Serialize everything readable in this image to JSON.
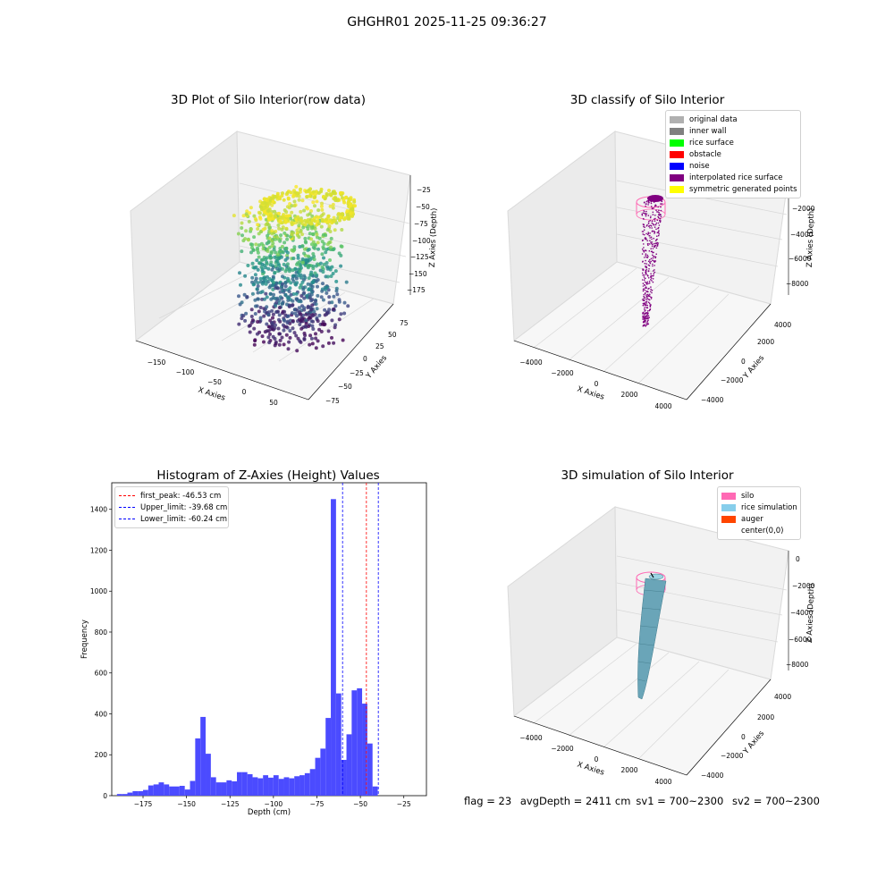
{
  "suptitle": "GHGHR01 2025-11-25 09:36:27",
  "plots": {
    "raw": {
      "title": "3D Plot of Silo Interior(row data)",
      "xlabel": "X Axies",
      "ylabel": "Y Axies",
      "zlabel": "Z Axies (Depth)",
      "xticks": [
        "−150",
        "−100",
        "−50",
        "0",
        "50"
      ],
      "yticks": [
        "−75",
        "−50",
        "−25",
        "0",
        "25",
        "50",
        "75"
      ],
      "zticks": [
        "−25",
        "−50",
        "−75",
        "−100",
        "−125",
        "−150",
        "−175"
      ]
    },
    "classify": {
      "title": "3D classify of Silo Interior",
      "xlabel": "X Axies",
      "ylabel": "Y Axies",
      "zlabel": "Z Axies (Depth)",
      "xticks": [
        "−4000",
        "−2000",
        "0",
        "2000",
        "4000"
      ],
      "yticks": [
        "−4000",
        "−2000",
        "0",
        "2000",
        "4000"
      ],
      "zticks": [
        "0",
        "−2000",
        "−4000",
        "−6000",
        "−8000"
      ],
      "legend": [
        {
          "label": "original data",
          "color": "#b0b0b0"
        },
        {
          "label": "inner wall",
          "color": "#808080"
        },
        {
          "label": "rice surface",
          "color": "#00ff00"
        },
        {
          "label": "obstacle",
          "color": "#ff0000"
        },
        {
          "label": "noise",
          "color": "#0000ff"
        },
        {
          "label": "interpolated rice surface",
          "color": "#800080"
        },
        {
          "label": "symmetric generated points",
          "color": "#ffff00"
        }
      ]
    },
    "histogram": {
      "title": "Histogram of Z-Axies (Height) Values",
      "xlabel": "Depth (cm)",
      "ylabel": "Frequency",
      "legend": [
        {
          "label": "first_peak: -46.53 cm",
          "color": "#ff0000"
        },
        {
          "label": "Upper_limit: -39.68 cm",
          "color": "#0000ff"
        },
        {
          "label": "Lower_limit: -60.24 cm",
          "color": "#0000ff"
        }
      ]
    },
    "simulation": {
      "title": "3D simulation of Silo Interior",
      "xlabel": "X Axies",
      "ylabel": "Y Axies",
      "zlabel": "Z Axies (Depth)",
      "xticks": [
        "−4000",
        "−2000",
        "0",
        "2000",
        "4000"
      ],
      "yticks": [
        "−4000",
        "−2000",
        "0",
        "2000",
        "4000"
      ],
      "zticks": [
        "0",
        "−2000",
        "−4000",
        "−6000",
        "−8000"
      ],
      "legend": [
        {
          "label": "silo",
          "color": "#ff69b4"
        },
        {
          "label": "rice simulation",
          "color": "#87ceeb"
        },
        {
          "label": "auger",
          "color": "#ff4500"
        },
        {
          "label": "center(0,0)",
          "color": "#ffffff"
        }
      ]
    }
  },
  "footer": {
    "flag": "flag = 23",
    "avg": "avgDepth = 2411 cm",
    "sv1": "sv1 = 700~2300",
    "sv2": "sv2 = 700~2300"
  },
  "chart_data": {
    "type": "bar",
    "title": "Histogram of Z-Axies (Height) Values",
    "xlabel": "Depth (cm)",
    "ylabel": "Frequency",
    "xlim": [
      -193,
      -12
    ],
    "ylim": [
      0,
      1530
    ],
    "xticks": [
      -175,
      -150,
      -125,
      -100,
      -75,
      -50,
      -25
    ],
    "yticks": [
      0,
      200,
      400,
      600,
      800,
      1000,
      1200,
      1400
    ],
    "bar_color": "#4b4bff",
    "bins": [
      {
        "x0": -190,
        "x1": -187,
        "y": 8
      },
      {
        "x0": -187,
        "x1": -184,
        "y": 8
      },
      {
        "x0": -184,
        "x1": -181,
        "y": 15
      },
      {
        "x0": -181,
        "x1": -178,
        "y": 22
      },
      {
        "x0": -178,
        "x1": -175,
        "y": 22
      },
      {
        "x0": -175,
        "x1": -172,
        "y": 28
      },
      {
        "x0": -172,
        "x1": -169,
        "y": 50
      },
      {
        "x0": -169,
        "x1": -166,
        "y": 55
      },
      {
        "x0": -166,
        "x1": -163,
        "y": 65
      },
      {
        "x0": -163,
        "x1": -160,
        "y": 55
      },
      {
        "x0": -160,
        "x1": -157,
        "y": 45
      },
      {
        "x0": -157,
        "x1": -154,
        "y": 45
      },
      {
        "x0": -154,
        "x1": -151,
        "y": 48
      },
      {
        "x0": -151,
        "x1": -148,
        "y": 30
      },
      {
        "x0": -148,
        "x1": -145,
        "y": 72
      },
      {
        "x0": -145,
        "x1": -142,
        "y": 280
      },
      {
        "x0": -142,
        "x1": -139,
        "y": 385
      },
      {
        "x0": -139,
        "x1": -136,
        "y": 205
      },
      {
        "x0": -136,
        "x1": -133,
        "y": 90
      },
      {
        "x0": -133,
        "x1": -130,
        "y": 65
      },
      {
        "x0": -130,
        "x1": -127,
        "y": 65
      },
      {
        "x0": -127,
        "x1": -124,
        "y": 75
      },
      {
        "x0": -124,
        "x1": -121,
        "y": 70
      },
      {
        "x0": -121,
        "x1": -118,
        "y": 115
      },
      {
        "x0": -118,
        "x1": -115,
        "y": 115
      },
      {
        "x0": -115,
        "x1": -112,
        "y": 105
      },
      {
        "x0": -112,
        "x1": -109,
        "y": 90
      },
      {
        "x0": -109,
        "x1": -106,
        "y": 85
      },
      {
        "x0": -106,
        "x1": -103,
        "y": 100
      },
      {
        "x0": -103,
        "x1": -100,
        "y": 88
      },
      {
        "x0": -100,
        "x1": -97,
        "y": 100
      },
      {
        "x0": -97,
        "x1": -94,
        "y": 82
      },
      {
        "x0": -94,
        "x1": -91,
        "y": 90
      },
      {
        "x0": -91,
        "x1": -88,
        "y": 85
      },
      {
        "x0": -88,
        "x1": -85,
        "y": 95
      },
      {
        "x0": -85,
        "x1": -82,
        "y": 100
      },
      {
        "x0": -82,
        "x1": -79,
        "y": 110
      },
      {
        "x0": -79,
        "x1": -76,
        "y": 130
      },
      {
        "x0": -76,
        "x1": -73,
        "y": 185
      },
      {
        "x0": -73,
        "x1": -70,
        "y": 230
      },
      {
        "x0": -70,
        "x1": -67,
        "y": 380
      },
      {
        "x0": -67,
        "x1": -64,
        "y": 1450
      },
      {
        "x0": -64,
        "x1": -61,
        "y": 500
      },
      {
        "x0": -61,
        "x1": -58,
        "y": 175
      },
      {
        "x0": -58,
        "x1": -55,
        "y": 300
      },
      {
        "x0": -55,
        "x1": -52,
        "y": 515
      },
      {
        "x0": -52,
        "x1": -49,
        "y": 525
      },
      {
        "x0": -49,
        "x1": -46,
        "y": 450
      },
      {
        "x0": -46,
        "x1": -43,
        "y": 255
      },
      {
        "x0": -43,
        "x1": -40,
        "y": 45
      }
    ],
    "vlines": [
      {
        "name": "first_peak: -46.53 cm",
        "x": -46.53,
        "color": "#ff0000"
      },
      {
        "name": "Upper_limit: -39.68 cm",
        "x": -39.68,
        "color": "#0000ff"
      },
      {
        "name": "Lower_limit: -60.24 cm",
        "x": -60.24,
        "color": "#0000ff"
      }
    ]
  }
}
